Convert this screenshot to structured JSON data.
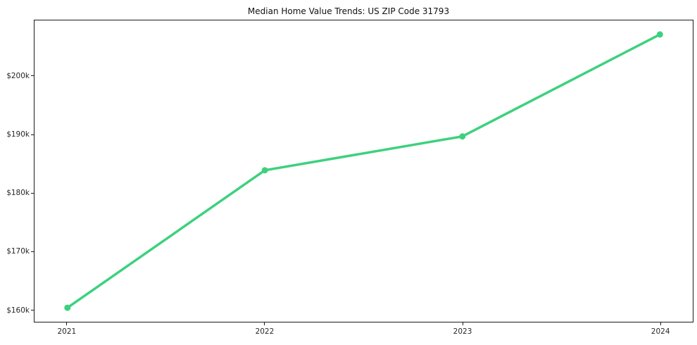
{
  "chart_data": {
    "type": "line",
    "title": "Median Home Value Trends: US ZIP Code 31793",
    "xlabel": "",
    "ylabel": "",
    "x": [
      2021,
      2022,
      2023,
      2024
    ],
    "x_tick_labels": [
      "2021",
      "2022",
      "2023",
      "2024"
    ],
    "series": [
      {
        "name": "Median Home Value",
        "values": [
          160300,
          183900,
          189700,
          207200
        ]
      }
    ],
    "y_ticks": [
      {
        "value": 160000,
        "label": "$160k"
      },
      {
        "value": 170000,
        "label": "$170k"
      },
      {
        "value": 180000,
        "label": "$180k"
      },
      {
        "value": 190000,
        "label": "$190k"
      },
      {
        "value": 200000,
        "label": "$200k"
      }
    ],
    "ylim": [
      157900,
      209600
    ],
    "x_margin_frac": 0.05,
    "line_color": "#3dd17e",
    "marker": "circle",
    "marker_radius": 4.5,
    "line_width": 3.5,
    "grid": false,
    "legend": false,
    "background_color": "#ffffff",
    "spine_color": "#1a1a1a",
    "tick_label_color": "#262626"
  }
}
